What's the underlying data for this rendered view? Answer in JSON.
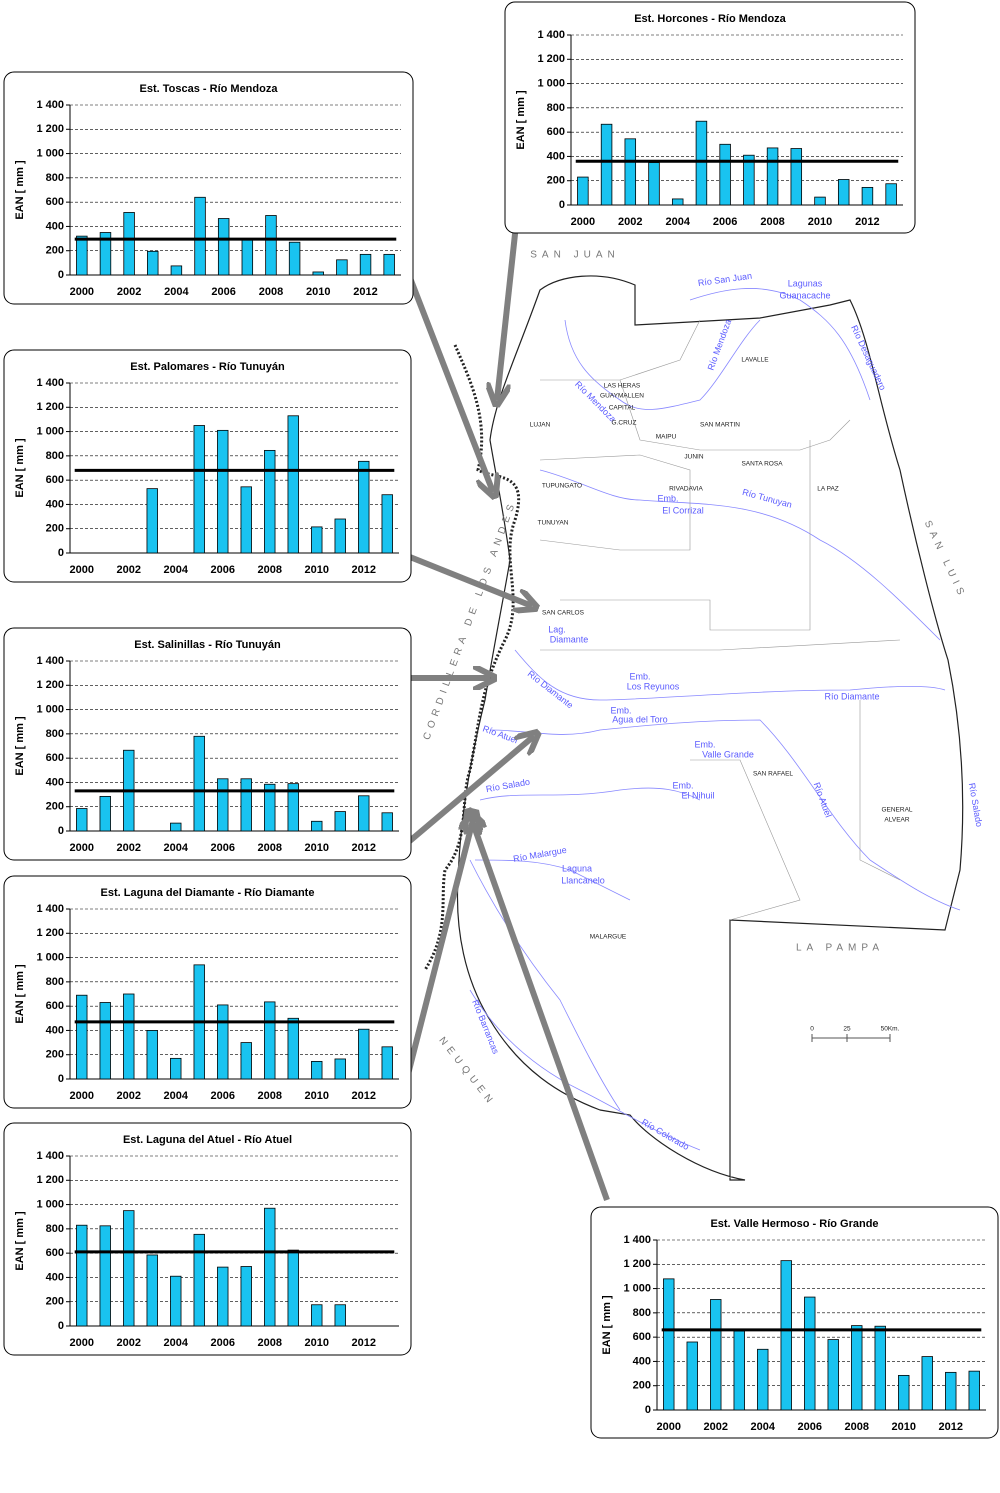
{
  "chart_data": [
    {
      "type": "bar",
      "title": "Est. Horcones  - Río Mendoza",
      "ylabel": "EAN [ mm ]",
      "color": "#19c3f0",
      "categories": [
        2000,
        null,
        2002,
        null,
        2004,
        null,
        2006,
        null,
        2008,
        null,
        2010,
        null,
        2012,
        null
      ],
      "values": [
        230,
        665,
        545,
        350,
        50,
        690,
        500,
        410,
        470,
        465,
        65,
        210,
        145,
        175
      ],
      "mean_line": 360,
      "ylim": [
        0,
        1400
      ],
      "yticks": [
        0,
        200,
        400,
        600,
        800,
        {
          "value": 1000,
          "label": "1 000"
        },
        {
          "value": 1200,
          "label": "1 200"
        },
        {
          "value": 1400,
          "label": "1 400"
        }
      ],
      "grid": true
    },
    {
      "type": "bar",
      "title": "Est. Toscas  - Río Mendoza",
      "ylabel": "EAN [ mm ]",
      "color": "#19c3f0",
      "categories": [
        2000,
        null,
        2002,
        null,
        2004,
        null,
        2006,
        null,
        2008,
        null,
        2010,
        null,
        2012,
        null
      ],
      "values": [
        320,
        350,
        515,
        195,
        75,
        640,
        465,
        290,
        490,
        270,
        25,
        125,
        170,
        170
      ],
      "mean_line": 295,
      "ylim": [
        0,
        1400
      ],
      "yticks": [
        0,
        200,
        400,
        600,
        800,
        {
          "value": 1000,
          "label": "1 000"
        },
        {
          "value": 1200,
          "label": "1 200"
        },
        {
          "value": 1400,
          "label": "1 400"
        }
      ],
      "grid": true
    },
    {
      "type": "bar",
      "title": "Est. Palomares  - Río Tunuyán",
      "ylabel": "EAN [ mm ]",
      "color": "#19c3f0",
      "categories": [
        2000,
        null,
        2002,
        null,
        2004,
        null,
        2006,
        null,
        2008,
        null,
        2010,
        null,
        2012,
        null
      ],
      "values": [
        null,
        null,
        null,
        530,
        null,
        1050,
        1010,
        545,
        845,
        1130,
        215,
        280,
        755,
        480
      ],
      "mean_line": 680,
      "ylim": [
        0,
        1400
      ],
      "yticks": [
        0,
        200,
        400,
        600,
        800,
        {
          "value": 1000,
          "label": "1 000"
        },
        {
          "value": 1200,
          "label": "1 200"
        },
        {
          "value": 1400,
          "label": "1 400"
        }
      ],
      "grid": true
    },
    {
      "type": "bar",
      "title": "Est. Salinillas  - Río Tunuyán",
      "ylabel": "EAN [ mm ]",
      "color": "#19c3f0",
      "categories": [
        2000,
        null,
        2002,
        null,
        2004,
        null,
        2006,
        null,
        2008,
        null,
        2010,
        null,
        2012,
        null
      ],
      "values": [
        185,
        285,
        665,
        null,
        65,
        780,
        430,
        430,
        385,
        390,
        80,
        160,
        290,
        150
      ],
      "mean_line": 330,
      "ylim": [
        0,
        1400
      ],
      "yticks": [
        0,
        200,
        400,
        600,
        800,
        {
          "value": 1000,
          "label": "1 000"
        },
        {
          "value": 1200,
          "label": "1 200"
        },
        {
          "value": 1400,
          "label": "1 400"
        }
      ],
      "grid": true
    },
    {
      "type": "bar",
      "title": "Est. Laguna del Diamante  - Río Diamante",
      "ylabel": "EAN [ mm ]",
      "color": "#19c3f0",
      "categories": [
        2000,
        null,
        2002,
        null,
        2004,
        null,
        2006,
        null,
        2008,
        null,
        2010,
        null,
        2012,
        null
      ],
      "values": [
        690,
        630,
        700,
        400,
        170,
        940,
        610,
        300,
        635,
        500,
        145,
        165,
        410,
        265
      ],
      "mean_line": 470,
      "ylim": [
        0,
        1400
      ],
      "yticks": [
        0,
        200,
        400,
        600,
        800,
        {
          "value": 1000,
          "label": "1 000"
        },
        {
          "value": 1200,
          "label": "1 200"
        },
        {
          "value": 1400,
          "label": "1 400"
        }
      ],
      "grid": true
    },
    {
      "type": "bar",
      "title": "Est. Laguna del Atuel  - Río Atuel",
      "ylabel": "EAN [ mm ]",
      "color": "#19c3f0",
      "categories": [
        2000,
        null,
        2002,
        null,
        2004,
        null,
        2006,
        null,
        2008,
        null,
        2010,
        null,
        2012,
        null
      ],
      "values": [
        830,
        825,
        950,
        585,
        410,
        755,
        485,
        490,
        970,
        625,
        175,
        175,
        null,
        null
      ],
      "mean_line": 610,
      "ylim": [
        0,
        1400
      ],
      "yticks": [
        0,
        200,
        400,
        600,
        800,
        {
          "value": 1000,
          "label": "1 000"
        },
        {
          "value": 1200,
          "label": "1 200"
        },
        {
          "value": 1400,
          "label": "1 400"
        }
      ],
      "grid": true
    },
    {
      "type": "bar",
      "title": "Est. Valle Hermoso  - Río Grande",
      "ylabel": "EAN [ mm ]",
      "color": "#19c3f0",
      "categories": [
        2000,
        null,
        2002,
        null,
        2004,
        null,
        2006,
        null,
        2008,
        null,
        2010,
        null,
        2012,
        null
      ],
      "values": [
        1080,
        560,
        910,
        650,
        500,
        1230,
        930,
        580,
        695,
        690,
        285,
        440,
        310,
        320
      ],
      "mean_line": 660,
      "ylim": [
        0,
        1400
      ],
      "yticks": [
        0,
        200,
        400,
        600,
        800,
        {
          "value": 1000,
          "label": "1 000"
        },
        {
          "value": 1200,
          "label": "1 200"
        },
        {
          "value": 1400,
          "label": "1 400"
        }
      ],
      "grid": true
    }
  ],
  "map": {
    "labels": [
      "SAN JUAN",
      "Río San Juan",
      "Lagunas",
      "Guanacache",
      "Río Desaguadero",
      "Río Mendoza",
      "LAVALLE",
      "Río Mendoza",
      "LAS HERAS",
      "GUAYMALLEN",
      "CAPITAL",
      "LUJAN",
      "G.CRUZ",
      "SAN MARTIN",
      "MAIPU",
      "JUNIN",
      "SANTA ROSA",
      "RIVADAVIA",
      "LA PAZ",
      "TUPUNGATO",
      "Emb.",
      "El Corrizal",
      "Río Tunuyan",
      "TUNUYAN",
      "SAN LUIS",
      "CORDILLERA DE LOS ANDES",
      "SAN CARLOS",
      "Lag.",
      "Diamante",
      "Emb.",
      "Los Reyunos",
      "Río Diamante",
      "Río Diamante",
      "Emb.",
      "Agua del Toro",
      "Río Atuel",
      "Emb.",
      "Valle Grande",
      "SAN RAFAEL",
      "Río Salado",
      "Emb.",
      "El Nihuil",
      "Río Atuel",
      "GENERAL",
      "ALVEAR",
      "Río Salado",
      "Río Malargue",
      "Laguna",
      "Llancanelo",
      "MALARGUE",
      "LA PAMPA",
      "0",
      "25",
      "50Km.",
      "Río Barrancas",
      "NEUQUEN",
      "Río Colorado"
    ]
  }
}
